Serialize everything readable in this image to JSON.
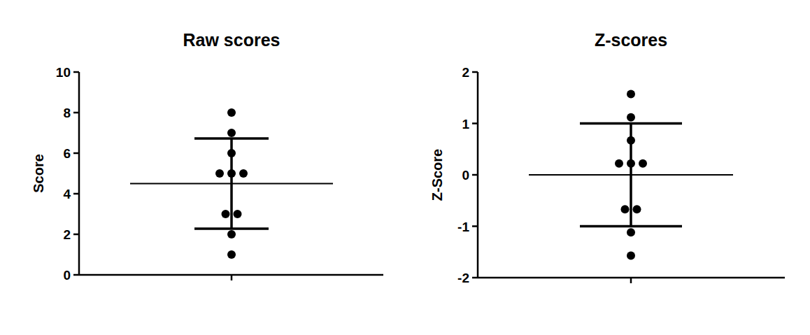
{
  "chart_data": [
    {
      "type": "scatter",
      "title": "Raw scores",
      "y_label": "Score",
      "values": [
        8,
        7,
        6,
        5,
        5,
        5,
        3,
        3,
        2,
        1
      ],
      "mean": 4.5,
      "sd": 2.22,
      "ylim": [
        0,
        10
      ],
      "yticks": [
        0,
        2,
        4,
        6,
        8,
        10
      ],
      "tick_labels": "y",
      "color": "#000000",
      "marker": "circle"
    },
    {
      "type": "scatter",
      "title": "Z-scores",
      "y_label": "Z-Score",
      "values": [
        1.57,
        1.12,
        0.67,
        0.22,
        0.22,
        0.22,
        -0.67,
        -0.67,
        -1.12,
        -1.57
      ],
      "mean": 0,
      "sd": 1,
      "ylim": [
        -2,
        2
      ],
      "yticks": [
        -2,
        -1,
        0,
        1,
        2
      ],
      "tick_labels": "y",
      "color": "#000000",
      "marker": "circle"
    }
  ]
}
